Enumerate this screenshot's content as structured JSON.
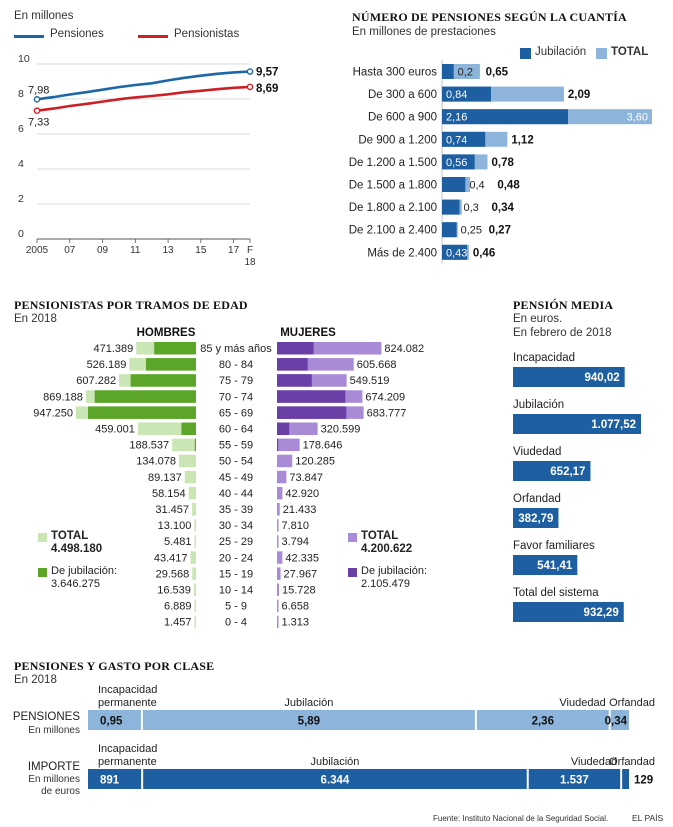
{
  "colors": {
    "pensiones": "#1d67a8",
    "pensionistas": "#cc2027",
    "dark_blue": "#1d5fa0",
    "light_blue": "#8db5dc",
    "green_dark": "#5ba528",
    "green_light": "#cbe6b5",
    "purple_dark": "#6a3fa6",
    "purple_light": "#a98ad6"
  },
  "line_chart": {
    "unit_label": "En millones",
    "legend": [
      "Pensiones",
      "Pensionistas"
    ],
    "y_ticks": [
      "10",
      "8",
      "6",
      "4",
      "2",
      "0"
    ],
    "x_ticks": [
      "2005",
      "07",
      "09",
      "11",
      "13",
      "15",
      "17",
      "F"
    ],
    "x_tick_extra": "18",
    "start_pensiones": "7,98",
    "start_pensionistas": "7,33",
    "end_pensiones": "9,57",
    "end_pensionistas": "8,69"
  },
  "cuantia": {
    "title": "NÚMERO DE PENSIONES SEGÚN LA CUANTÍA",
    "subtitle": "En millones de prestaciones",
    "legend": [
      "Jubilación",
      "TOTAL"
    ],
    "rows": [
      {
        "label": "Hasta 300 euros",
        "jub": "0,2",
        "total": "0,65"
      },
      {
        "label": "De 300 a 600",
        "jub": "0,84",
        "total": "2,09"
      },
      {
        "label": "De 600 a 900",
        "jub": "2,16",
        "total": "3,60"
      },
      {
        "label": "De 900 a 1.200",
        "jub": "0,74",
        "total": "1,12"
      },
      {
        "label": "De 1.200 a 1.500",
        "jub": "0,56",
        "total": "0,78"
      },
      {
        "label": "De 1.500 a 1.800",
        "jub": "0,4",
        "total": "0,48"
      },
      {
        "label": "De 1.800 a 2.100",
        "jub": "0,3",
        "total": "0,34"
      },
      {
        "label": "De 2.100 a 2.400",
        "jub": "0,25",
        "total": "0,27"
      },
      {
        "label": "Más de 2.400",
        "jub": "0,43",
        "total": "0,46"
      }
    ]
  },
  "edad": {
    "title": "PENSIONISTAS POR TRAMOS DE EDAD",
    "subtitle": "En 2018",
    "hombres_label": "HOMBRES",
    "mujeres_label": "MUJERES",
    "rows": [
      {
        "age": "85 y más años",
        "h": "471.389",
        "m": "824.082"
      },
      {
        "age": "80 - 84",
        "h": "526.189",
        "m": "605.668"
      },
      {
        "age": "75 - 79",
        "h": "607.282",
        "m": "549.519"
      },
      {
        "age": "70 - 74",
        "h": "869.188",
        "m": "674.209"
      },
      {
        "age": "65 - 69",
        "h": "947.250",
        "m": "683.777"
      },
      {
        "age": "60 - 64",
        "h": "459.001",
        "m": "320.599"
      },
      {
        "age": "55 - 59",
        "h": "188.537",
        "m": "178.646"
      },
      {
        "age": "50 - 54",
        "h": "134.078",
        "m": "120.285"
      },
      {
        "age": "45 - 49",
        "h": "89.137",
        "m": "73.847"
      },
      {
        "age": "40 - 44",
        "h": "58.154",
        "m": "42.920"
      },
      {
        "age": "35 - 39",
        "h": "31.457",
        "m": "21.433"
      },
      {
        "age": "30 - 34",
        "h": "13.100",
        "m": "7.810"
      },
      {
        "age": "25 - 29",
        "h": "5.481",
        "m": "3.794"
      },
      {
        "age": "20 - 24",
        "h": "43.417",
        "m": "42.335"
      },
      {
        "age": "15 - 19",
        "h": "29.568",
        "m": "27.967"
      },
      {
        "age": "10 - 14",
        "h": "16.539",
        "m": "15.728"
      },
      {
        "age": "5 - 9",
        "h": "6.889",
        "m": "6.658"
      },
      {
        "age": "0 - 4",
        "h": "1.457",
        "m": "1.313"
      }
    ],
    "h_jub_share": [
      0.7,
      0.75,
      0.85,
      0.92,
      0.9,
      0.25,
      0.05,
      0,
      0,
      0,
      0,
      0,
      0,
      0,
      0,
      0,
      0,
      0
    ],
    "m_jub_share": [
      0.35,
      0.4,
      0.5,
      0.8,
      0.8,
      0.3,
      0.05,
      0,
      0,
      0,
      0,
      0,
      0,
      0,
      0,
      0,
      0,
      0
    ],
    "legend_h": {
      "total_label": "TOTAL",
      "total_value": "4.498.180",
      "jub_label": "De jubilación:",
      "jub_value": "3.646.275"
    },
    "legend_m": {
      "total_label": "TOTAL",
      "total_value": "4.200.622",
      "jub_label": "De jubilación:",
      "jub_value": "2.105.479"
    }
  },
  "media": {
    "title": "PENSIÓN MEDIA",
    "subtitle1": "En euros.",
    "subtitle2": "En febrero de 2018",
    "rows": [
      {
        "label": "Incapacidad",
        "value": "940,02"
      },
      {
        "label": "Jubilación",
        "value": "1.077,52"
      },
      {
        "label": "Viudedad",
        "value": "652,17"
      },
      {
        "label": "Orfandad",
        "value": "382,79"
      },
      {
        "label": "Favor familiares",
        "value": "541,41"
      },
      {
        "label": "Total del sistema",
        "value": "932,29"
      }
    ]
  },
  "clase": {
    "title": "PENSIONES Y GASTO POR CLASE",
    "subtitle": "En 2018",
    "cat_incap": [
      "Incapacidad",
      "permanente"
    ],
    "cat_jub": "Jubilación",
    "cat_viud": "Viudedad",
    "cat_orf": "Orfandad",
    "pensiones_label": "PENSIONES",
    "pensiones_unit": "En millones",
    "importe_label": "IMPORTE",
    "importe_unit": [
      "En millones",
      "de euros"
    ],
    "pensiones_values": [
      "0,95",
      "5,89",
      "2,36",
      "0,34"
    ],
    "importe_values": [
      "891",
      "6.344",
      "1.537",
      "129"
    ]
  },
  "footer": {
    "source": "Fuente: Instituto Nacional de la Seguridad Social.",
    "brand": "EL PAÍS"
  },
  "chart_data": [
    {
      "type": "line",
      "title": "",
      "ylabel": "En millones",
      "x": [
        "2005",
        "2006",
        "2007",
        "2008",
        "2009",
        "2010",
        "2011",
        "2012",
        "2013",
        "2014",
        "2015",
        "2016",
        "2017",
        "F 18"
      ],
      "ylim": [
        0,
        10
      ],
      "series": [
        {
          "name": "Pensiones",
          "values": [
            7.98,
            8.11,
            8.26,
            8.39,
            8.53,
            8.68,
            8.8,
            8.9,
            9.06,
            9.21,
            9.33,
            9.44,
            9.52,
            9.57
          ]
        },
        {
          "name": "Pensionistas",
          "values": [
            7.33,
            7.45,
            7.6,
            7.72,
            7.85,
            7.98,
            8.09,
            8.17,
            8.27,
            8.39,
            8.47,
            8.56,
            8.64,
            8.69
          ]
        }
      ]
    },
    {
      "type": "bar",
      "title": "NÚMERO DE PENSIONES SEGÚN LA CUANTÍA",
      "categories": [
        "Hasta 300 euros",
        "De 300 a 600",
        "De 600 a 900",
        "De 900 a 1.200",
        "De 1.200 a 1.500",
        "De 1.500 a 1.800",
        "De 1.800 a 2.100",
        "De 2.100 a 2.400",
        "Más de 2.400"
      ],
      "series": [
        {
          "name": "Jubilación",
          "values": [
            0.2,
            0.84,
            2.16,
            0.74,
            0.56,
            0.4,
            0.3,
            0.25,
            0.43
          ]
        },
        {
          "name": "TOTAL",
          "values": [
            0.65,
            2.09,
            3.6,
            1.12,
            0.78,
            0.48,
            0.34,
            0.27,
            0.46
          ]
        }
      ]
    },
    {
      "type": "bar",
      "title": "PENSIONISTAS POR TRAMOS DE EDAD",
      "categories": [
        "85 y más años",
        "80 - 84",
        "75 - 79",
        "70 - 74",
        "65 - 69",
        "60 - 64",
        "55 - 59",
        "50 - 54",
        "45 - 49",
        "40 - 44",
        "35 - 39",
        "30 - 34",
        "25 - 29",
        "20 - 24",
        "15 - 19",
        "10 - 14",
        "5 - 9",
        "0 - 4"
      ],
      "series": [
        {
          "name": "HOMBRES",
          "values": [
            471389,
            526189,
            607282,
            869188,
            947250,
            459001,
            188537,
            134078,
            89137,
            58154,
            31457,
            13100,
            5481,
            43417,
            29568,
            16539,
            6889,
            1457
          ]
        },
        {
          "name": "MUJERES",
          "values": [
            824082,
            605668,
            549519,
            674209,
            683777,
            320599,
            178646,
            120285,
            73847,
            42920,
            21433,
            7810,
            3794,
            42335,
            27967,
            15728,
            6658,
            1313
          ]
        }
      ]
    },
    {
      "type": "bar",
      "title": "PENSIÓN MEDIA",
      "categories": [
        "Incapacidad",
        "Jubilación",
        "Viudedad",
        "Orfandad",
        "Favor familiares",
        "Total del sistema"
      ],
      "values": [
        940.02,
        1077.52,
        652.17,
        382.79,
        541.41,
        932.29
      ]
    },
    {
      "type": "bar",
      "title": "PENSIONES Y GASTO POR CLASE",
      "categories": [
        "Incapacidad permanente",
        "Jubilación",
        "Viudedad",
        "Orfandad"
      ],
      "series": [
        {
          "name": "PENSIONES",
          "values": [
            0.95,
            5.89,
            2.36,
            0.34
          ]
        },
        {
          "name": "IMPORTE",
          "values": [
            891,
            6344,
            1537,
            129
          ]
        }
      ]
    }
  ]
}
